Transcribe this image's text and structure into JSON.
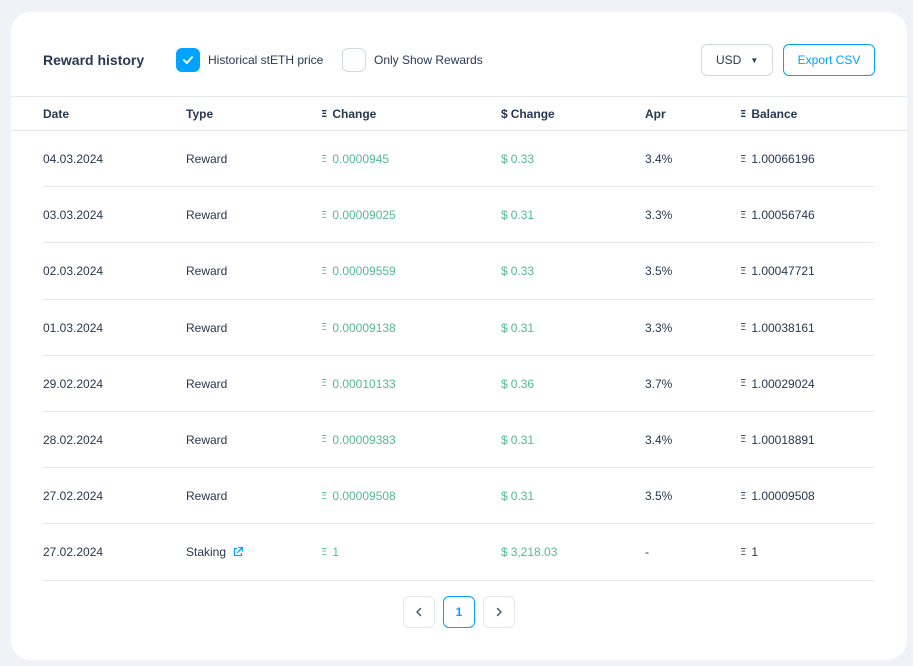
{
  "header": {
    "title": "Reward history",
    "historical_price_label": "Historical stETH price",
    "historical_price_checked": true,
    "only_rewards_label": "Only Show Rewards",
    "only_rewards_checked": false,
    "currency": "USD",
    "export_label": "Export CSV"
  },
  "columns": {
    "date": "Date",
    "type": "Type",
    "eth_change": "Change",
    "usd_change": "Change",
    "apr": "Apr",
    "balance": "Balance"
  },
  "symbols": {
    "eth": "Ξ",
    "usd": "$"
  },
  "rows": [
    {
      "date": "04.03.2024",
      "type": "Reward",
      "eth_change": "0.0000945",
      "usd_change": "0.33",
      "apr": "3.4%",
      "balance": "1.00066196"
    },
    {
      "date": "03.03.2024",
      "type": "Reward",
      "eth_change": "0.00009025",
      "usd_change": "0.31",
      "apr": "3.3%",
      "balance": "1.00056746"
    },
    {
      "date": "02.03.2024",
      "type": "Reward",
      "eth_change": "0.00009559",
      "usd_change": "0.33",
      "apr": "3.5%",
      "balance": "1.00047721"
    },
    {
      "date": "01.03.2024",
      "type": "Reward",
      "eth_change": "0.00009138",
      "usd_change": "0.31",
      "apr": "3.3%",
      "balance": "1.00038161"
    },
    {
      "date": "29.02.2024",
      "type": "Reward",
      "eth_change": "0.00010133",
      "usd_change": "0.36",
      "apr": "3.7%",
      "balance": "1.00029024"
    },
    {
      "date": "28.02.2024",
      "type": "Reward",
      "eth_change": "0.00009383",
      "usd_change": "0.31",
      "apr": "3.4%",
      "balance": "1.00018891"
    },
    {
      "date": "27.02.2024",
      "type": "Reward",
      "eth_change": "0.00009508",
      "usd_change": "0.31",
      "apr": "3.5%",
      "balance": "1.00009508"
    },
    {
      "date": "27.02.2024",
      "type": "Staking",
      "eth_change": "1",
      "usd_change": "3,218.03",
      "apr": "-",
      "balance": "1"
    }
  ],
  "pagination": {
    "current_page": "1",
    "prev_icon": "chevron-left-icon",
    "next_icon": "chevron-right-icon"
  },
  "colors": {
    "accent": "#00a3ff",
    "positive": "#53ba95",
    "text": "#273852"
  }
}
